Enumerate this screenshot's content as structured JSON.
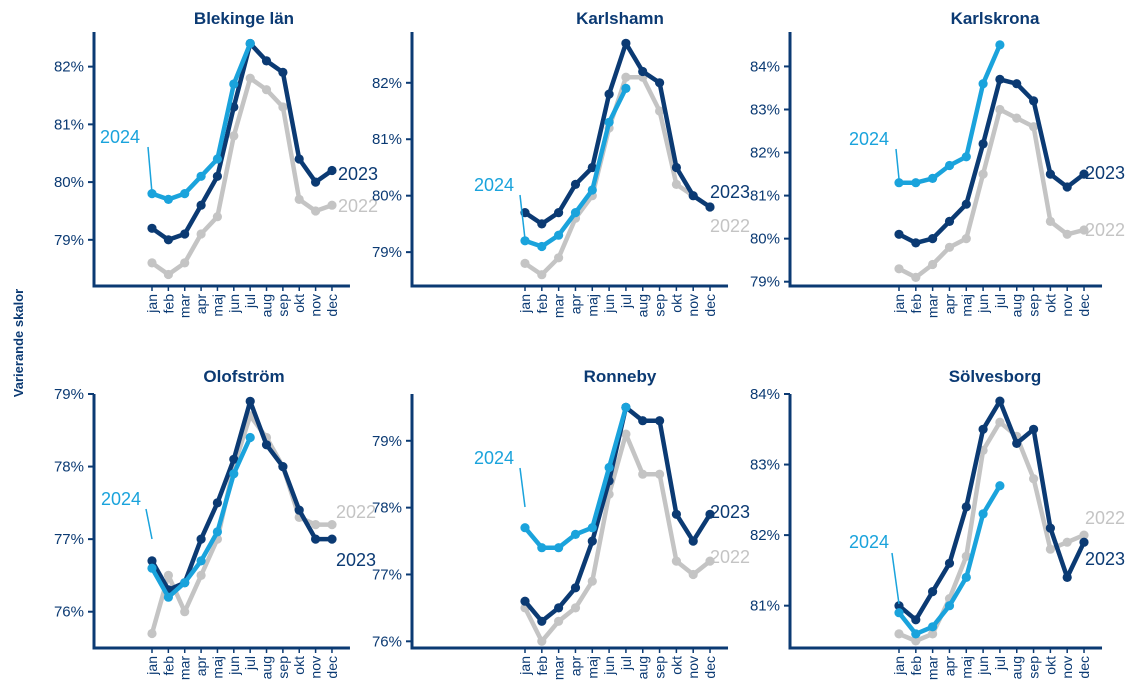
{
  "chart_data": {
    "type": "line",
    "ylabel": "Varierande skalor",
    "months": [
      "jan",
      "feb",
      "mar",
      "apr",
      "maj",
      "jun",
      "jul",
      "aug",
      "sep",
      "okt",
      "nov",
      "dec"
    ],
    "colors": {
      "2022": "#c4c4c4",
      "2023": "#0b3a73",
      "2024": "#1aa3dc"
    },
    "panels": [
      {
        "title": "Blekinge län",
        "ylim": [
          78.2,
          82.6
        ],
        "yticks": [
          {
            "v": 79,
            "label": "79%"
          },
          {
            "v": 80,
            "label": "80%"
          },
          {
            "v": 81,
            "label": "81%"
          },
          {
            "v": 82,
            "label": "82%"
          }
        ],
        "series": [
          {
            "name": "2022",
            "values": [
              78.6,
              78.4,
              78.6,
              79.1,
              79.4,
              80.8,
              81.8,
              81.6,
              81.3,
              79.7,
              79.5,
              79.6
            ]
          },
          {
            "name": "2023",
            "values": [
              79.2,
              79.0,
              79.1,
              79.6,
              80.1,
              81.3,
              82.4,
              82.1,
              81.9,
              80.4,
              80.0,
              80.2
            ]
          },
          {
            "name": "2024",
            "values": [
              79.8,
              79.7,
              79.8,
              80.1,
              80.4,
              81.7,
              82.4
            ]
          }
        ]
      },
      {
        "title": "Karlshamn",
        "ylim": [
          78.4,
          82.9
        ],
        "yticks": [
          {
            "v": 79,
            "label": "79%"
          },
          {
            "v": 80,
            "label": "80%"
          },
          {
            "v": 81,
            "label": "81%"
          },
          {
            "v": 82,
            "label": "82%"
          }
        ],
        "series": [
          {
            "name": "2022",
            "values": [
              78.8,
              78.6,
              78.9,
              79.6,
              80.0,
              81.2,
              82.1,
              82.1,
              81.5,
              80.2,
              80.0,
              79.8
            ]
          },
          {
            "name": "2023",
            "values": [
              79.7,
              79.5,
              79.7,
              80.2,
              80.5,
              81.8,
              82.7,
              82.2,
              82.0,
              80.5,
              80.0,
              79.8
            ]
          },
          {
            "name": "2024",
            "values": [
              79.2,
              79.1,
              79.3,
              79.7,
              80.1,
              81.3,
              81.9
            ]
          }
        ]
      },
      {
        "title": "Karlskrona",
        "ylim": [
          78.9,
          84.8
        ],
        "yticks": [
          {
            "v": 79,
            "label": "79%"
          },
          {
            "v": 80,
            "label": "80%"
          },
          {
            "v": 81,
            "label": "81%"
          },
          {
            "v": 82,
            "label": "82%"
          },
          {
            "v": 83,
            "label": "83%"
          },
          {
            "v": 84,
            "label": "84%"
          }
        ],
        "series": [
          {
            "name": "2022",
            "values": [
              79.3,
              79.1,
              79.4,
              79.8,
              80.0,
              81.5,
              83.0,
              82.8,
              82.6,
              80.4,
              80.1,
              80.2
            ]
          },
          {
            "name": "2023",
            "values": [
              80.1,
              79.9,
              80.0,
              80.4,
              80.8,
              82.2,
              83.7,
              83.6,
              83.2,
              81.5,
              81.2,
              81.5
            ]
          },
          {
            "name": "2024",
            "values": [
              81.3,
              81.3,
              81.4,
              81.7,
              81.9,
              83.6,
              84.5
            ]
          }
        ]
      },
      {
        "title": "Olofström",
        "ylim": [
          75.5,
          79.0
        ],
        "yticks": [
          {
            "v": 76,
            "label": "76%"
          },
          {
            "v": 77,
            "label": "77%"
          },
          {
            "v": 78,
            "label": "78%"
          },
          {
            "v": 79,
            "label": "79%"
          }
        ],
        "series": [
          {
            "name": "2022",
            "values": [
              75.7,
              76.5,
              76.0,
              76.5,
              77.0,
              78.0,
              78.7,
              78.4,
              78.0,
              77.3,
              77.2,
              77.2
            ]
          },
          {
            "name": "2023",
            "values": [
              76.7,
              76.3,
              76.4,
              77.0,
              77.5,
              78.1,
              78.9,
              78.3,
              78.0,
              77.4,
              77.0,
              77.0
            ]
          },
          {
            "name": "2024",
            "values": [
              76.6,
              76.2,
              76.4,
              76.7,
              77.1,
              77.9,
              78.4
            ]
          }
        ]
      },
      {
        "title": "Ronneby",
        "ylim": [
          75.9,
          79.7
        ],
        "yticks": [
          {
            "v": 76,
            "label": "76%"
          },
          {
            "v": 77,
            "label": "77%"
          },
          {
            "v": 78,
            "label": "78%"
          },
          {
            "v": 79,
            "label": "79%"
          }
        ],
        "series": [
          {
            "name": "2022",
            "values": [
              76.5,
              76.0,
              76.3,
              76.5,
              76.9,
              78.2,
              79.1,
              78.5,
              78.5,
              77.2,
              77.0,
              77.2
            ]
          },
          {
            "name": "2023",
            "values": [
              76.6,
              76.3,
              76.5,
              76.8,
              77.5,
              78.4,
              79.5,
              79.3,
              79.3,
              77.9,
              77.5,
              77.9
            ]
          },
          {
            "name": "2024",
            "values": [
              77.7,
              77.4,
              77.4,
              77.6,
              77.7,
              78.6,
              79.5
            ]
          }
        ]
      },
      {
        "title": "Sölvesborg",
        "ylim": [
          80.4,
          84.0
        ],
        "yticks": [
          {
            "v": 81,
            "label": "81%"
          },
          {
            "v": 82,
            "label": "82%"
          },
          {
            "v": 83,
            "label": "83%"
          },
          {
            "v": 84,
            "label": "84%"
          }
        ],
        "series": [
          {
            "name": "2022",
            "values": [
              80.6,
              80.5,
              80.6,
              81.1,
              81.7,
              83.2,
              83.6,
              83.4,
              82.8,
              81.8,
              81.9,
              82.0
            ]
          },
          {
            "name": "2023",
            "values": [
              81.0,
              80.8,
              81.2,
              81.6,
              82.4,
              83.5,
              83.9,
              83.3,
              83.5,
              82.1,
              81.4,
              81.9
            ]
          },
          {
            "name": "2024",
            "values": [
              80.9,
              80.6,
              80.7,
              81.0,
              81.4,
              82.3,
              82.7
            ]
          }
        ]
      }
    ]
  }
}
